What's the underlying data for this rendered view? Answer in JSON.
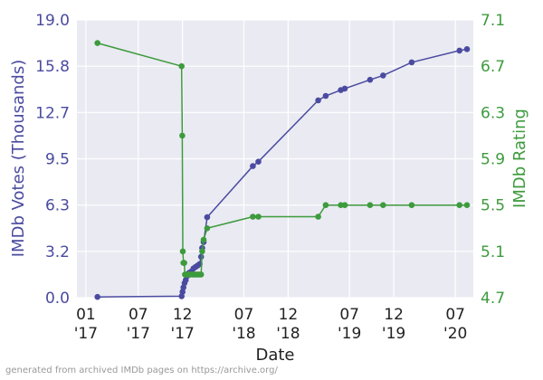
{
  "chart_data": {
    "type": "line",
    "xlabel": "Date",
    "footer": "generated from archived IMDb pages on https://archive.org/",
    "x_ticks": [
      {
        "date": "2017-01-01",
        "month": "01",
        "year": "'17"
      },
      {
        "date": "2017-07-01",
        "month": "07",
        "year": "'17"
      },
      {
        "date": "2017-12-01",
        "month": "12",
        "year": "'17"
      },
      {
        "date": "2018-07-01",
        "month": "07",
        "year": "'18"
      },
      {
        "date": "2018-12-01",
        "month": "12",
        "year": "'18"
      },
      {
        "date": "2019-07-01",
        "month": "07",
        "year": "'19"
      },
      {
        "date": "2019-12-01",
        "month": "12",
        "year": "'19"
      },
      {
        "date": "2020-07-01",
        "month": "07",
        "year": "'20"
      }
    ],
    "xlim": [
      "2016-12-01",
      "2020-09-01"
    ],
    "y_left": {
      "label": "IMDb Votes (Thousands)",
      "ticks": [
        "0.0",
        "3.2",
        "6.3",
        "9.5",
        "12.7",
        "15.8",
        "19.0"
      ],
      "lim": [
        0,
        19.0
      ],
      "color": "#4a4ba0"
    },
    "y_right": {
      "label": "IMDb Rating",
      "ticks": [
        "4.7",
        "5.1",
        "5.5",
        "5.9",
        "6.3",
        "6.7",
        "7.1"
      ],
      "lim": [
        4.7,
        7.1
      ],
      "color": "#3d9b3d"
    },
    "background": "#eaeaf2",
    "grid": true,
    "series": [
      {
        "axis": "left",
        "color": "#4a4ba0",
        "points": [
          [
            "2017-02-10",
            0.05
          ],
          [
            "2017-11-28",
            0.1
          ],
          [
            "2017-12-01",
            0.4
          ],
          [
            "2017-12-04",
            0.7
          ],
          [
            "2017-12-08",
            1.0
          ],
          [
            "2017-12-12",
            1.2
          ],
          [
            "2017-12-18",
            1.5
          ],
          [
            "2017-12-24",
            1.7
          ],
          [
            "2018-01-01",
            1.8
          ],
          [
            "2018-01-08",
            2.0
          ],
          [
            "2018-01-15",
            2.1
          ],
          [
            "2018-01-22",
            2.2
          ],
          [
            "2018-01-29",
            2.3
          ],
          [
            "2018-02-03",
            2.8
          ],
          [
            "2018-02-07",
            3.4
          ],
          [
            "2018-02-12",
            3.8
          ],
          [
            "2018-02-24",
            5.5
          ],
          [
            "2018-08-01",
            9.0
          ],
          [
            "2018-08-20",
            9.3
          ],
          [
            "2019-03-15",
            13.5
          ],
          [
            "2019-04-10",
            13.8
          ],
          [
            "2019-06-01",
            14.2
          ],
          [
            "2019-06-15",
            14.3
          ],
          [
            "2019-09-10",
            14.9
          ],
          [
            "2019-10-25",
            15.2
          ],
          [
            "2020-02-01",
            16.1
          ],
          [
            "2020-07-15",
            16.9
          ],
          [
            "2020-08-10",
            17.0
          ]
        ]
      },
      {
        "axis": "right",
        "color": "#3d9b3d",
        "points": [
          [
            "2017-02-10",
            6.9
          ],
          [
            "2017-11-28",
            6.7
          ],
          [
            "2017-11-30",
            6.1
          ],
          [
            "2017-12-02",
            5.1
          ],
          [
            "2017-12-04",
            5.0
          ],
          [
            "2017-12-07",
            5.0
          ],
          [
            "2017-12-09",
            4.9
          ],
          [
            "2017-12-13",
            4.9
          ],
          [
            "2017-12-18",
            4.9
          ],
          [
            "2017-12-23",
            4.9
          ],
          [
            "2017-12-28",
            4.9
          ],
          [
            "2018-01-04",
            4.9
          ],
          [
            "2018-01-10",
            4.9
          ],
          [
            "2018-01-16",
            4.9
          ],
          [
            "2018-01-22",
            4.9
          ],
          [
            "2018-01-28",
            4.9
          ],
          [
            "2018-02-03",
            4.9
          ],
          [
            "2018-02-07",
            5.1
          ],
          [
            "2018-02-12",
            5.2
          ],
          [
            "2018-02-24",
            5.3
          ],
          [
            "2018-08-01",
            5.4
          ],
          [
            "2018-08-20",
            5.4
          ],
          [
            "2019-03-15",
            5.4
          ],
          [
            "2019-04-10",
            5.5
          ],
          [
            "2019-06-01",
            5.5
          ],
          [
            "2019-06-15",
            5.5
          ],
          [
            "2019-09-10",
            5.5
          ],
          [
            "2019-10-25",
            5.5
          ],
          [
            "2020-02-01",
            5.5
          ],
          [
            "2020-07-15",
            5.5
          ],
          [
            "2020-08-10",
            5.5
          ]
        ]
      }
    ]
  }
}
